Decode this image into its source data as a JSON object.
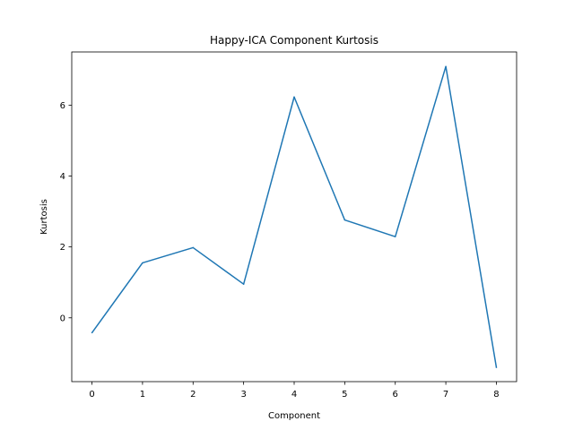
{
  "chart_data": {
    "type": "line",
    "title": "Happy-ICA Component Kurtosis",
    "xlabel": "Component",
    "ylabel": "Kurtosis",
    "x": [
      0,
      1,
      2,
      3,
      4,
      5,
      6,
      7,
      8
    ],
    "series": [
      {
        "values": [
          -0.42,
          1.55,
          1.98,
          0.95,
          6.23,
          2.76,
          2.29,
          7.09,
          -1.4
        ],
        "color": "#1f77b4"
      }
    ],
    "xlim": [
      -0.4,
      8.4
    ],
    "ylim": [
      -1.8,
      7.5
    ],
    "xticks": [
      0,
      1,
      2,
      3,
      4,
      5,
      6,
      7,
      8
    ],
    "yticks": [
      0,
      2,
      4,
      6
    ],
    "grid": false,
    "legend": "none"
  }
}
